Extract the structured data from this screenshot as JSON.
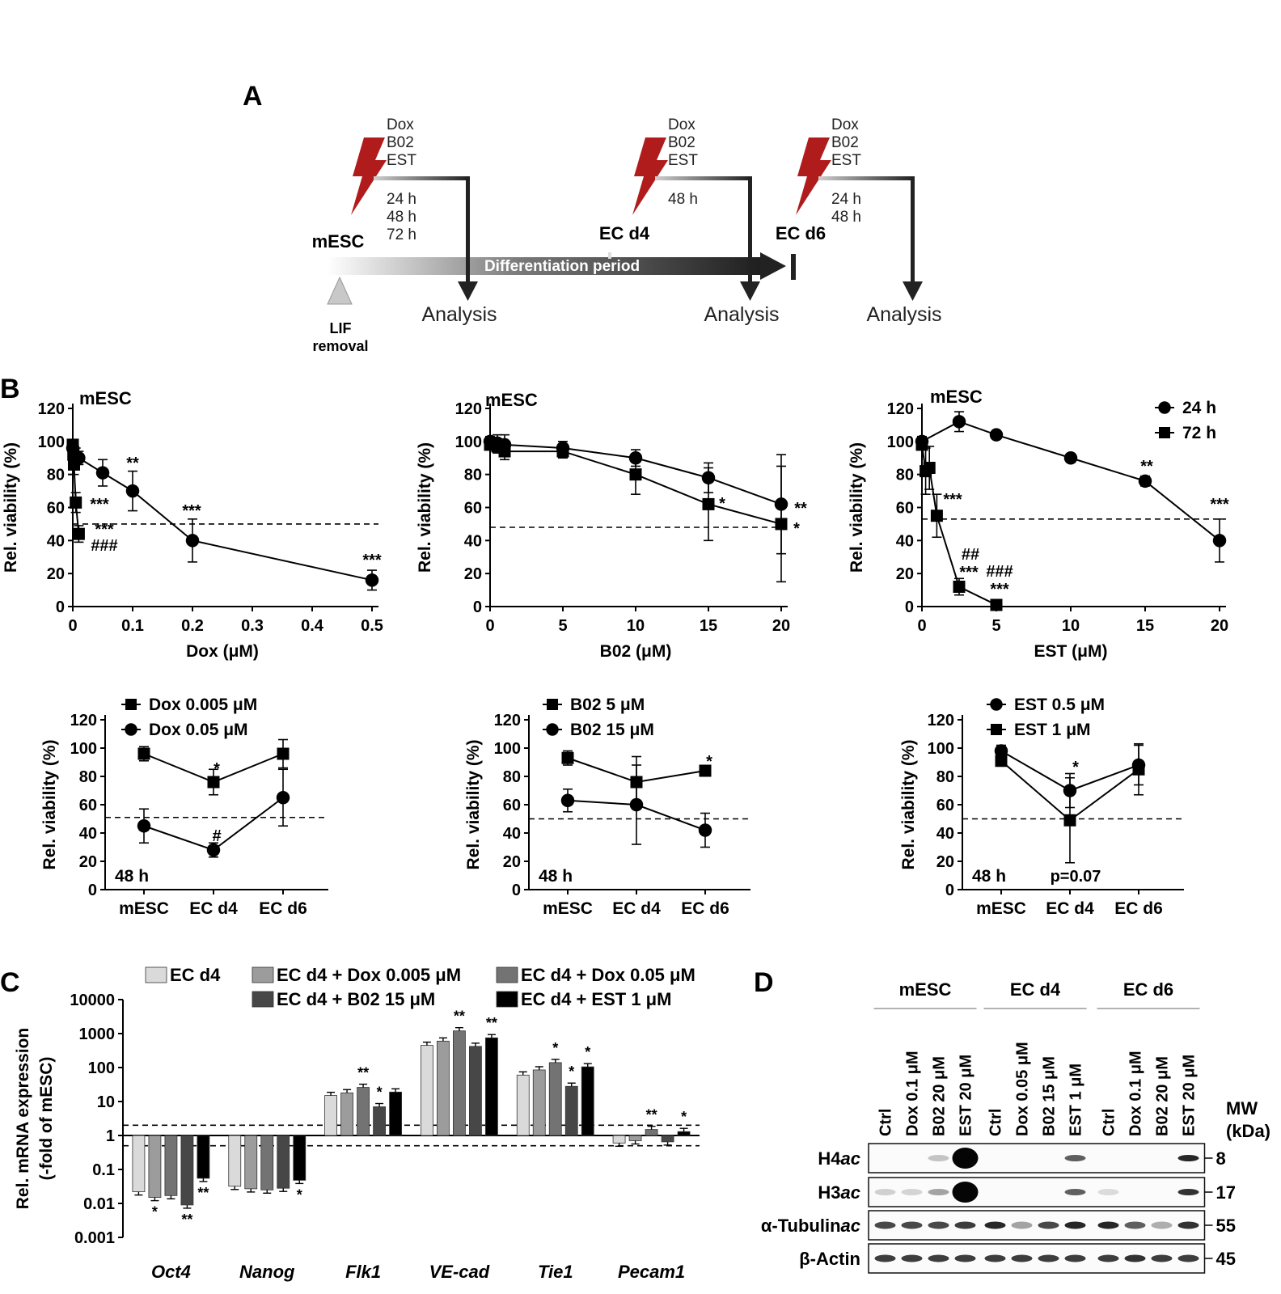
{
  "panels": {
    "A": "A",
    "B": "B",
    "C": "C",
    "D": "D"
  },
  "schematic": {
    "treatments": [
      "Dox",
      "B02",
      "EST"
    ],
    "arms": [
      {
        "times": [
          "24 h",
          "48 h",
          "72 h"
        ],
        "stage": "mESC",
        "analysis": "Analysis"
      },
      {
        "times": [
          "48 h"
        ],
        "stage": "EC d4",
        "analysis": "Analysis"
      },
      {
        "times": [
          "24 h",
          "48 h"
        ],
        "stage": "EC d6",
        "analysis": "Analysis"
      }
    ],
    "period_label": "Differentiation period",
    "lif_label": [
      "LIF",
      "removal"
    ],
    "colors": {
      "bolt": "#b01c1c",
      "arrow": "#222222"
    }
  },
  "chart_data": [
    {
      "type": "line",
      "panel": "B-top-1",
      "title": "mESC",
      "xlabel": "Dox (μM)",
      "ylabel": "Rel. viability (%)",
      "xlim": [
        0,
        0.5
      ],
      "ylim": [
        0,
        120
      ],
      "xticks": [
        "0",
        "0.1",
        "0.2",
        "0.3",
        "0.4",
        "0.5"
      ],
      "yticks": [
        "0",
        "20",
        "40",
        "60",
        "80",
        "100",
        "120"
      ],
      "reference_line": 50,
      "series": [
        {
          "marker": "circle",
          "x": [
            0,
            0.005,
            0.01,
            0.05,
            0.1,
            0.2,
            0.5
          ],
          "y": [
            96,
            91,
            90,
            81,
            70,
            40,
            16
          ],
          "err": [
            4,
            5,
            4,
            8,
            12,
            13,
            6
          ]
        },
        {
          "marker": "square",
          "x": [
            0,
            0.001,
            0.002,
            0.005,
            0.01
          ],
          "y": [
            98,
            92,
            86,
            63,
            44
          ],
          "err": [
            3,
            5,
            6,
            6,
            5
          ]
        }
      ],
      "annotations": [
        "***",
        "***",
        "###",
        "**",
        "***",
        "***"
      ]
    },
    {
      "type": "line",
      "panel": "B-top-2",
      "title": "mESC",
      "xlabel": "B02 (μM)",
      "ylabel": "Rel. viability (%)",
      "xlim": [
        0,
        20
      ],
      "ylim": [
        0,
        120
      ],
      "xticks": [
        "0",
        "5",
        "10",
        "15",
        "20"
      ],
      "yticks": [
        "0",
        "20",
        "40",
        "60",
        "80",
        "100",
        "120"
      ],
      "reference_line": 48,
      "series": [
        {
          "marker": "circle",
          "x": [
            0,
            0.5,
            1,
            5,
            10,
            15,
            20
          ],
          "y": [
            100,
            99,
            98,
            96,
            90,
            78,
            62
          ],
          "err": [
            3,
            5,
            6,
            4,
            5,
            9,
            30
          ]
        },
        {
          "marker": "square",
          "x": [
            0,
            0.5,
            1,
            5,
            10,
            15,
            20
          ],
          "y": [
            98,
            97,
            94,
            94,
            80,
            62,
            50
          ],
          "err": [
            3,
            4,
            5,
            4,
            12,
            22,
            35
          ]
        }
      ],
      "annotations": [
        "**",
        "*",
        "*"
      ]
    },
    {
      "type": "line",
      "panel": "B-top-3",
      "title": "mESC",
      "xlabel": "EST (μM)",
      "ylabel": "Rel. viability (%)",
      "xlim": [
        0,
        20
      ],
      "ylim": [
        0,
        120
      ],
      "xticks": [
        "0",
        "5",
        "10",
        "15",
        "20"
      ],
      "yticks": [
        "0",
        "20",
        "40",
        "60",
        "80",
        "100",
        "120"
      ],
      "reference_line": 53,
      "legend": [
        {
          "marker": "circle",
          "label": "24 h"
        },
        {
          "marker": "square",
          "label": "72 h"
        }
      ],
      "legend_position": "top-right",
      "series": [
        {
          "marker": "circle",
          "x": [
            0,
            2.5,
            5,
            10,
            15,
            20
          ],
          "y": [
            100,
            112,
            104,
            90,
            76,
            40
          ],
          "err": [
            3,
            6,
            2,
            2,
            3,
            13
          ]
        },
        {
          "marker": "square",
          "x": [
            0,
            0.25,
            0.5,
            1,
            2.5,
            5
          ],
          "y": [
            98,
            82,
            84,
            55,
            12,
            1
          ],
          "err": [
            3,
            14,
            13,
            13,
            5,
            1
          ]
        }
      ],
      "annotations": [
        "***",
        "##",
        "***",
        "###",
        "***",
        "**",
        "***"
      ]
    },
    {
      "type": "line",
      "panel": "B-bottom-1",
      "categories": [
        "mESC",
        "EC d4",
        "EC d6"
      ],
      "ylabel": "Rel. viability (%)",
      "ylim": [
        0,
        120
      ],
      "yticks": [
        "0",
        "20",
        "40",
        "60",
        "80",
        "100",
        "120"
      ],
      "reference_line": 51,
      "note": "48 h",
      "legend": [
        {
          "marker": "square",
          "label": "Dox 0.005 μM"
        },
        {
          "marker": "circle",
          "label": "Dox 0.05 μM"
        }
      ],
      "legend_position": "top-left",
      "series": [
        {
          "marker": "square",
          "values": [
            96,
            76,
            96
          ],
          "err": [
            5,
            9,
            10
          ]
        },
        {
          "marker": "circle",
          "values": [
            45,
            28,
            65
          ],
          "err": [
            12,
            5,
            20
          ]
        }
      ],
      "annotations": [
        "*",
        "#"
      ]
    },
    {
      "type": "line",
      "panel": "B-bottom-2",
      "categories": [
        "mESC",
        "EC d4",
        "EC d6"
      ],
      "ylabel": "Rel. viability (%)",
      "ylim": [
        0,
        120
      ],
      "yticks": [
        "0",
        "20",
        "40",
        "60",
        "80",
        "100",
        "120"
      ],
      "reference_line": 50,
      "note": "48 h",
      "legend": [
        {
          "marker": "square",
          "label": "B02 5 μM"
        },
        {
          "marker": "circle",
          "label": "B02 15 μM"
        }
      ],
      "legend_position": "top-left",
      "series": [
        {
          "marker": "square",
          "values": [
            93,
            76,
            84
          ],
          "err": [
            5,
            18,
            2
          ]
        },
        {
          "marker": "circle",
          "values": [
            63,
            60,
            42
          ],
          "err": [
            8,
            28,
            12
          ]
        }
      ],
      "annotations": [
        "*"
      ]
    },
    {
      "type": "line",
      "panel": "B-bottom-3",
      "categories": [
        "mESC",
        "EC d4",
        "EC d6"
      ],
      "ylabel": "Rel. viability (%)",
      "ylim": [
        0,
        120
      ],
      "yticks": [
        "0",
        "20",
        "40",
        "60",
        "80",
        "100",
        "120"
      ],
      "reference_line": 50,
      "note": "48 h",
      "legend": [
        {
          "marker": "circle",
          "label": "EST 0.5 μM"
        },
        {
          "marker": "square",
          "label": "EST 1 μM"
        }
      ],
      "legend_position": "top-left",
      "series": [
        {
          "marker": "circle",
          "values": [
            98,
            70,
            88
          ],
          "err": [
            4,
            12,
            14
          ]
        },
        {
          "marker": "square",
          "values": [
            91,
            49,
            85
          ],
          "err": [
            3,
            30,
            18
          ]
        }
      ],
      "annotations": [
        "*",
        "p=0.07"
      ]
    },
    {
      "type": "bar",
      "panel": "C",
      "scale": "log",
      "categories": [
        "Oct4",
        "Nanog",
        "Flk1",
        "VE-cad",
        "Tie1",
        "Pecam1"
      ],
      "ylabel": [
        "Rel. mRNA expression",
        "(-fold of mESC)"
      ],
      "ylim": [
        0.001,
        10000
      ],
      "yticks": [
        "0.001",
        "0.01",
        "0.1",
        "1",
        "10",
        "100",
        "1000",
        "10000"
      ],
      "reference_lines": [
        2,
        0.5
      ],
      "series": [
        {
          "name": "EC d4",
          "color": "#dadada",
          "values": [
            0.022,
            0.032,
            15,
            450,
            60,
            0.6
          ]
        },
        {
          "name": "EC d4 + Dox 0.005 μM",
          "color": "#9c9c9c",
          "values": [
            0.015,
            0.027,
            18,
            600,
            85,
            0.7
          ]
        },
        {
          "name": "EC d4 + Dox 0.05 μM",
          "color": "#737373",
          "values": [
            0.017,
            0.025,
            26,
            1200,
            140,
            1.5
          ]
        },
        {
          "name": "EC d4 + B02 15 μM",
          "color": "#474747",
          "values": [
            0.009,
            0.028,
            7,
            420,
            28,
            0.65
          ]
        },
        {
          "name": "EC d4 + EST 1 μM",
          "color": "#000000",
          "values": [
            0.055,
            0.048,
            19,
            750,
            105,
            1.3
          ]
        }
      ],
      "significance": [
        [
          "",
          "*",
          "",
          "**",
          "**"
        ],
        [
          "",
          "",
          "",
          "",
          "*"
        ],
        [
          "",
          "",
          "**",
          "*",
          ""
        ],
        [
          "",
          "",
          "**",
          "",
          "**"
        ],
        [
          "",
          "",
          "*",
          "*",
          "*"
        ],
        [
          "",
          "",
          "**",
          "",
          "*"
        ]
      ]
    }
  ],
  "blot": {
    "groups": [
      "mESC",
      "EC d4",
      "EC d6"
    ],
    "lanes": [
      "Ctrl",
      "Dox 0.1 μM",
      "B02 20 μM",
      "EST 20 μM",
      "Ctrl",
      "Dox 0.05 μM",
      "B02 15 μM",
      "EST 1 μM",
      "Ctrl",
      "Dox 0.1 μM",
      "B02 20 μM",
      "EST 20 μM"
    ],
    "mw_header": [
      "MW",
      "(kDa)"
    ],
    "rows": [
      {
        "label": "H4",
        "label_italic": "ac",
        "mw": "8",
        "intensity": [
          0,
          0,
          0.15,
          1,
          0,
          0,
          0,
          0.6,
          0,
          0,
          0,
          0.85
        ]
      },
      {
        "label": "H3",
        "label_italic": "ac",
        "mw": "17",
        "intensity": [
          0.1,
          0.08,
          0.3,
          1,
          0,
          0,
          0,
          0.6,
          0.05,
          0,
          0,
          0.8
        ]
      },
      {
        "label": "α-Tubulin",
        "label_italic": "ac",
        "mw": "55",
        "intensity": [
          0.7,
          0.7,
          0.7,
          0.75,
          0.85,
          0.3,
          0.7,
          0.85,
          0.85,
          0.6,
          0.25,
          0.8
        ]
      },
      {
        "label": "β-Actin",
        "label_italic": "",
        "mw": "45",
        "intensity": [
          0.75,
          0.75,
          0.75,
          0.75,
          0.75,
          0.75,
          0.75,
          0.75,
          0.75,
          0.8,
          0.75,
          0.75
        ]
      }
    ]
  }
}
